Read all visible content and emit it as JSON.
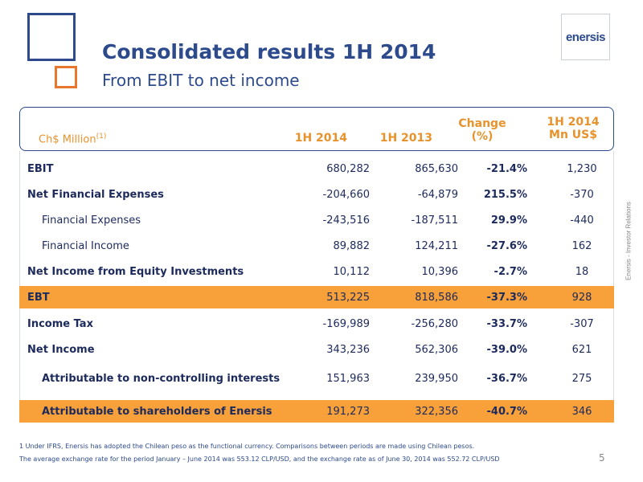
{
  "slide": {
    "title": "Consolidated results 1H 2014",
    "subtitle": "From EBIT to net income",
    "logo_text": "enersis",
    "side_text": "Enersis - Investor Relations",
    "page_number": "5"
  },
  "colors": {
    "brand_blue": "#2c4a8c",
    "accent_orange": "#e8922b",
    "highlight_orange": "#f8a13a"
  },
  "table": {
    "units_label": "Ch$ Million",
    "units_note": "(1)",
    "col_1h2014": "1H 2014",
    "col_1h2013": "1H 2013",
    "col_change_line1": "Change",
    "col_change_line2": "(%)",
    "col_usd_line1": "1H 2014",
    "col_usd_line2": "Mn US$",
    "rows": [
      {
        "label": "EBIT",
        "v2014": "680,282",
        "v2013": "865,630",
        "change": "-21.4%",
        "usd": "1,230"
      },
      {
        "label": "Net Financial Expenses",
        "v2014": "-204,660",
        "v2013": "-64,879",
        "change": "215.5%",
        "usd": "-370"
      },
      {
        "label": "Financial Expenses",
        "v2014": "-243,516",
        "v2013": "-187,511",
        "change": "29.9%",
        "usd": "-440"
      },
      {
        "label": "Financial Income",
        "v2014": "89,882",
        "v2013": "124,211",
        "change": "-27.6%",
        "usd": "162"
      },
      {
        "label": "Net Income from Equity Investments",
        "v2014": "10,112",
        "v2013": "10,396",
        "change": "-2.7%",
        "usd": "18"
      },
      {
        "label": "EBT",
        "v2014": "513,225",
        "v2013": "818,586",
        "change": "-37.3%",
        "usd": "928"
      },
      {
        "label": "Income Tax",
        "v2014": "-169,989",
        "v2013": "-256,280",
        "change": "-33.7%",
        "usd": "-307"
      },
      {
        "label": "Net Income",
        "v2014": "343,236",
        "v2013": "562,306",
        "change": "-39.0%",
        "usd": "621"
      },
      {
        "label": "Attributable to non-controlling interests",
        "v2014": "151,963",
        "v2013": "239,950",
        "change": "-36.7%",
        "usd": "275"
      },
      {
        "label": "Attributable to shareholders of Enersis",
        "v2014": "191,273",
        "v2013": "322,356",
        "change": "-40.7%",
        "usd": "346"
      }
    ]
  },
  "footnotes": {
    "line1": "1 Under IFRS, Enersis has adopted the Chilean peso as the functional currency. Comparisons between periods are made using Chilean pesos.",
    "line2": "The average exchange rate for the period January – June 2014 was 553.12 CLP/USD, and the exchange rate as of June 30, 2014 was 552.72 CLP/USD"
  }
}
